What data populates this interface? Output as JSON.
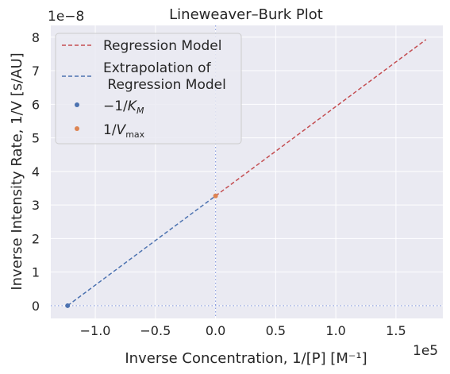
{
  "chart_data": {
    "type": "line",
    "title": "Lineweaver–Burk Plot",
    "xlabel": "Inverse Concentration, 1/[P] [M⁻¹]",
    "ylabel": "Inverse Intensity Rate, 1/V [s/AU]",
    "x_exponent_label": "1e5",
    "y_exponent_label": "1e−8",
    "xlim": [
      -1.37,
      1.89
    ],
    "ylim": [
      -0.38,
      8.35
    ],
    "xticks": [
      -1.0,
      -0.5,
      0.0,
      0.5,
      1.0,
      1.5
    ],
    "xtick_labels": [
      "−1.0",
      "−0.5",
      "0.0",
      "0.5",
      "1.0",
      "1.5"
    ],
    "yticks": [
      0,
      1,
      2,
      3,
      4,
      5,
      6,
      7,
      8
    ],
    "ytick_labels": [
      "0",
      "1",
      "2",
      "3",
      "4",
      "5",
      "6",
      "7",
      "8"
    ],
    "grid": true,
    "legend_position": "top-left",
    "series": [
      {
        "name": "Regression Model",
        "style": "dashed",
        "color": "#c44e52",
        "x": [
          0.0,
          1.75
        ],
        "y": [
          3.27,
          7.93
        ]
      },
      {
        "name": "Extrapolation of\n Regression Model",
        "style": "dashed",
        "color": "#4c72b0",
        "x": [
          -1.23,
          0.0
        ],
        "y": [
          0.0,
          3.27
        ]
      },
      {
        "name": "−1/K_M",
        "style": "point",
        "color": "#4c72b0",
        "x": [
          -1.23
        ],
        "y": [
          0.0
        ]
      },
      {
        "name": "1/V_max",
        "style": "point",
        "color": "#dd8452",
        "x": [
          0.0
        ],
        "y": [
          3.27
        ]
      }
    ],
    "reference_lines": [
      {
        "orientation": "horizontal",
        "value": 0,
        "color": "#8da0e0",
        "style": "dotted"
      },
      {
        "orientation": "vertical",
        "value": 0,
        "color": "#8da0e0",
        "style": "dotted"
      }
    ],
    "colors": {
      "background": "#eaeaf2",
      "grid": "#ffffff",
      "text": "#262626"
    }
  }
}
